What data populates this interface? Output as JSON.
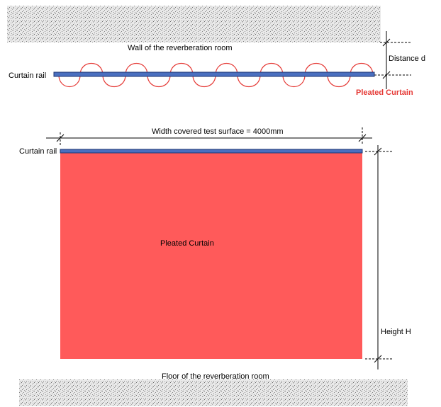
{
  "top_view": {
    "wall_label": "Wall of the reverberation room",
    "rail_label": "Curtain rail",
    "distance_label": "Distance d",
    "curtain_label": "Pleated Curtain"
  },
  "front_view": {
    "width_label": "Width covered test surface =  4000mm",
    "rail_label": "Curtain rail",
    "curtain_label": "Pleated Curtain",
    "height_label": "Height H",
    "floor_label": "Floor of the reverberation room"
  },
  "colors": {
    "rail_fill": "#4a6fbf",
    "rail_stroke": "#1f3470",
    "curtain_fill": "#ff5a5a",
    "curtain_stroke": "#e53935",
    "curtain_text_top": "#e53935",
    "hatch_bg": "#e6e6e6",
    "dim_line": "#000000"
  }
}
